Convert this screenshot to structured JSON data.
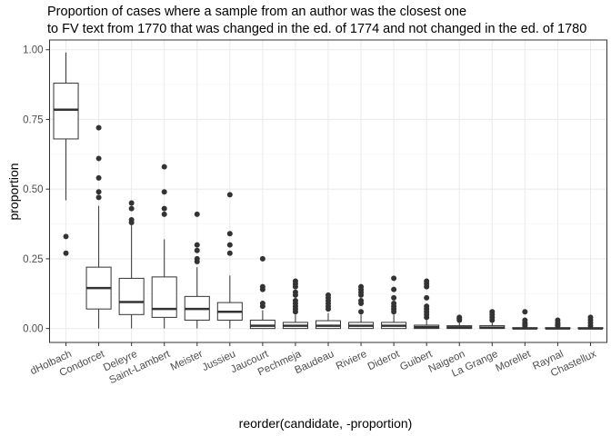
{
  "chart_data": {
    "type": "boxplot",
    "title": [
      "Proportion of cases where a sample from an author was the closest one",
      "to FV text from 1770 that was changed in the ed. of 1774 and not changed in the ed. of 1780"
    ],
    "xlabel": "reorder(candidate, -proportion)",
    "ylabel": "proportion",
    "ylim": [
      -0.05,
      1.035
    ],
    "yticks": [
      0.0,
      0.25,
      0.5,
      0.75,
      1.0
    ],
    "ytick_labels": [
      "0.00",
      "0.25",
      "0.50",
      "0.75",
      "1.00"
    ],
    "grid": true,
    "colors": {
      "panel_border": "#333333",
      "grid_major": "#ebebeb",
      "grid_minor": "#f5f5f5",
      "box_fill": "#ffffff",
      "box_line": "#333333",
      "outlier": "#333333"
    },
    "categories": [
      "dHolbach",
      "Condorcet",
      "Deleyre",
      "Saint-Lambert",
      "Meister",
      "Jussieu",
      "Jaucourt",
      "Pechmeja",
      "Baudeau",
      "Riviere",
      "Diderot",
      "Guibert",
      "Naigeon",
      "La Grange",
      "Morellet",
      "Raynal",
      "Chastellux"
    ],
    "boxes": [
      {
        "q1": 0.68,
        "median": 0.785,
        "q3": 0.88,
        "whisker_low": 0.46,
        "whisker_high": 0.99,
        "outliers": [
          0.27,
          0.33
        ]
      },
      {
        "q1": 0.07,
        "median": 0.145,
        "q3": 0.22,
        "whisker_low": 0.0,
        "whisker_high": 0.44,
        "outliers": [
          0.47,
          0.49,
          0.54,
          0.61,
          0.72
        ]
      },
      {
        "q1": 0.05,
        "median": 0.095,
        "q3": 0.18,
        "whisker_low": 0.0,
        "whisker_high": 0.37,
        "outliers": [
          0.38,
          0.39,
          0.43,
          0.45
        ]
      },
      {
        "q1": 0.04,
        "median": 0.07,
        "q3": 0.185,
        "whisker_low": 0.0,
        "whisker_high": 0.32,
        "outliers": [
          0.41,
          0.43,
          0.49,
          0.58
        ]
      },
      {
        "q1": 0.03,
        "median": 0.07,
        "q3": 0.115,
        "whisker_low": 0.0,
        "whisker_high": 0.22,
        "outliers": [
          0.24,
          0.25,
          0.28,
          0.3,
          0.41
        ]
      },
      {
        "q1": 0.03,
        "median": 0.06,
        "q3": 0.093,
        "whisker_low": 0.0,
        "whisker_high": 0.19,
        "outliers": [
          0.27,
          0.3,
          0.34,
          0.48
        ]
      },
      {
        "q1": 0.0,
        "median": 0.01,
        "q3": 0.03,
        "whisker_low": 0.0,
        "whisker_high": 0.065,
        "outliers": [
          0.08,
          0.09,
          0.14,
          0.15,
          0.25
        ]
      },
      {
        "q1": 0.0,
        "median": 0.01,
        "q3": 0.022,
        "whisker_low": 0.0,
        "whisker_high": 0.05,
        "outliers": [
          0.06,
          0.07,
          0.08,
          0.09,
          0.1,
          0.12,
          0.13,
          0.15,
          0.16,
          0.17
        ]
      },
      {
        "q1": 0.0,
        "median": 0.01,
        "q3": 0.028,
        "whisker_low": 0.0,
        "whisker_high": 0.055,
        "outliers": [
          0.07,
          0.08,
          0.09,
          0.1,
          0.11,
          0.12
        ]
      },
      {
        "q1": 0.0,
        "median": 0.01,
        "q3": 0.022,
        "whisker_low": 0.0,
        "whisker_high": 0.05,
        "outliers": [
          0.06,
          0.09,
          0.1,
          0.12,
          0.13,
          0.14,
          0.15
        ]
      },
      {
        "q1": 0.0,
        "median": 0.01,
        "q3": 0.022,
        "whisker_low": 0.0,
        "whisker_high": 0.05,
        "outliers": [
          0.06,
          0.07,
          0.08,
          0.09,
          0.11,
          0.14,
          0.18
        ]
      },
      {
        "q1": 0.0,
        "median": 0.005,
        "q3": 0.012,
        "whisker_low": 0.0,
        "whisker_high": 0.03,
        "outliers": [
          0.04,
          0.05,
          0.06,
          0.07,
          0.08,
          0.11,
          0.15,
          0.16,
          0.17
        ]
      },
      {
        "q1": 0.0,
        "median": 0.004,
        "q3": 0.01,
        "whisker_low": 0.0,
        "whisker_high": 0.02,
        "outliers": [
          0.03,
          0.035,
          0.04
        ]
      },
      {
        "q1": 0.0,
        "median": 0.003,
        "q3": 0.01,
        "whisker_low": 0.0,
        "whisker_high": 0.02,
        "outliers": [
          0.03,
          0.04,
          0.05,
          0.06
        ]
      },
      {
        "q1": 0.0,
        "median": 0.0,
        "q3": 0.003,
        "whisker_low": 0.0,
        "whisker_high": 0.006,
        "outliers": [
          0.01,
          0.015,
          0.02,
          0.03,
          0.06
        ]
      },
      {
        "q1": 0.0,
        "median": 0.0,
        "q3": 0.003,
        "whisker_low": 0.0,
        "whisker_high": 0.006,
        "outliers": [
          0.01,
          0.015,
          0.02,
          0.03
        ]
      },
      {
        "q1": 0.0,
        "median": 0.0,
        "q3": 0.003,
        "whisker_low": 0.0,
        "whisker_high": 0.006,
        "outliers": [
          0.01,
          0.02,
          0.03,
          0.04
        ]
      }
    ]
  }
}
